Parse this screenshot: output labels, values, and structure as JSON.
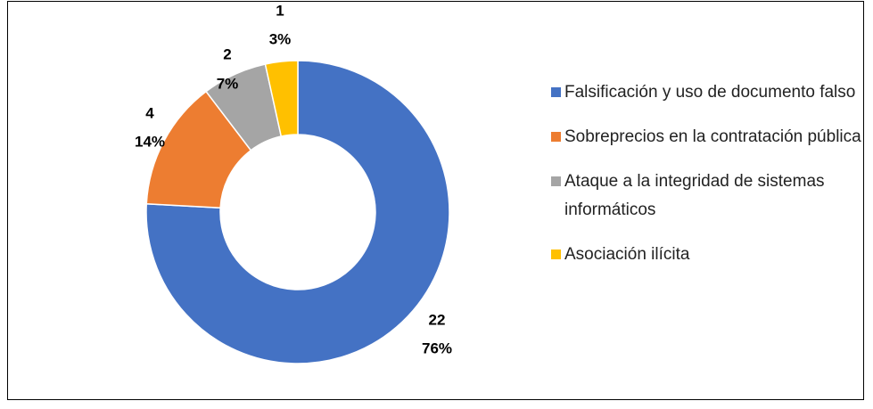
{
  "chart_data": {
    "type": "donut",
    "categories": [
      "Falsificación y uso de documento falso",
      "Sobreprecios en la contratación pública",
      "Ataque a la integridad de sistemas informáticos",
      "Asociación ilícita"
    ],
    "values": [
      22,
      4,
      2,
      1
    ],
    "percent_labels": [
      "76%",
      "14%",
      "7%",
      "3%"
    ],
    "colors": [
      "#4472c4",
      "#ed7d31",
      "#a5a5a5",
      "#ffc000"
    ],
    "legend": "right"
  }
}
